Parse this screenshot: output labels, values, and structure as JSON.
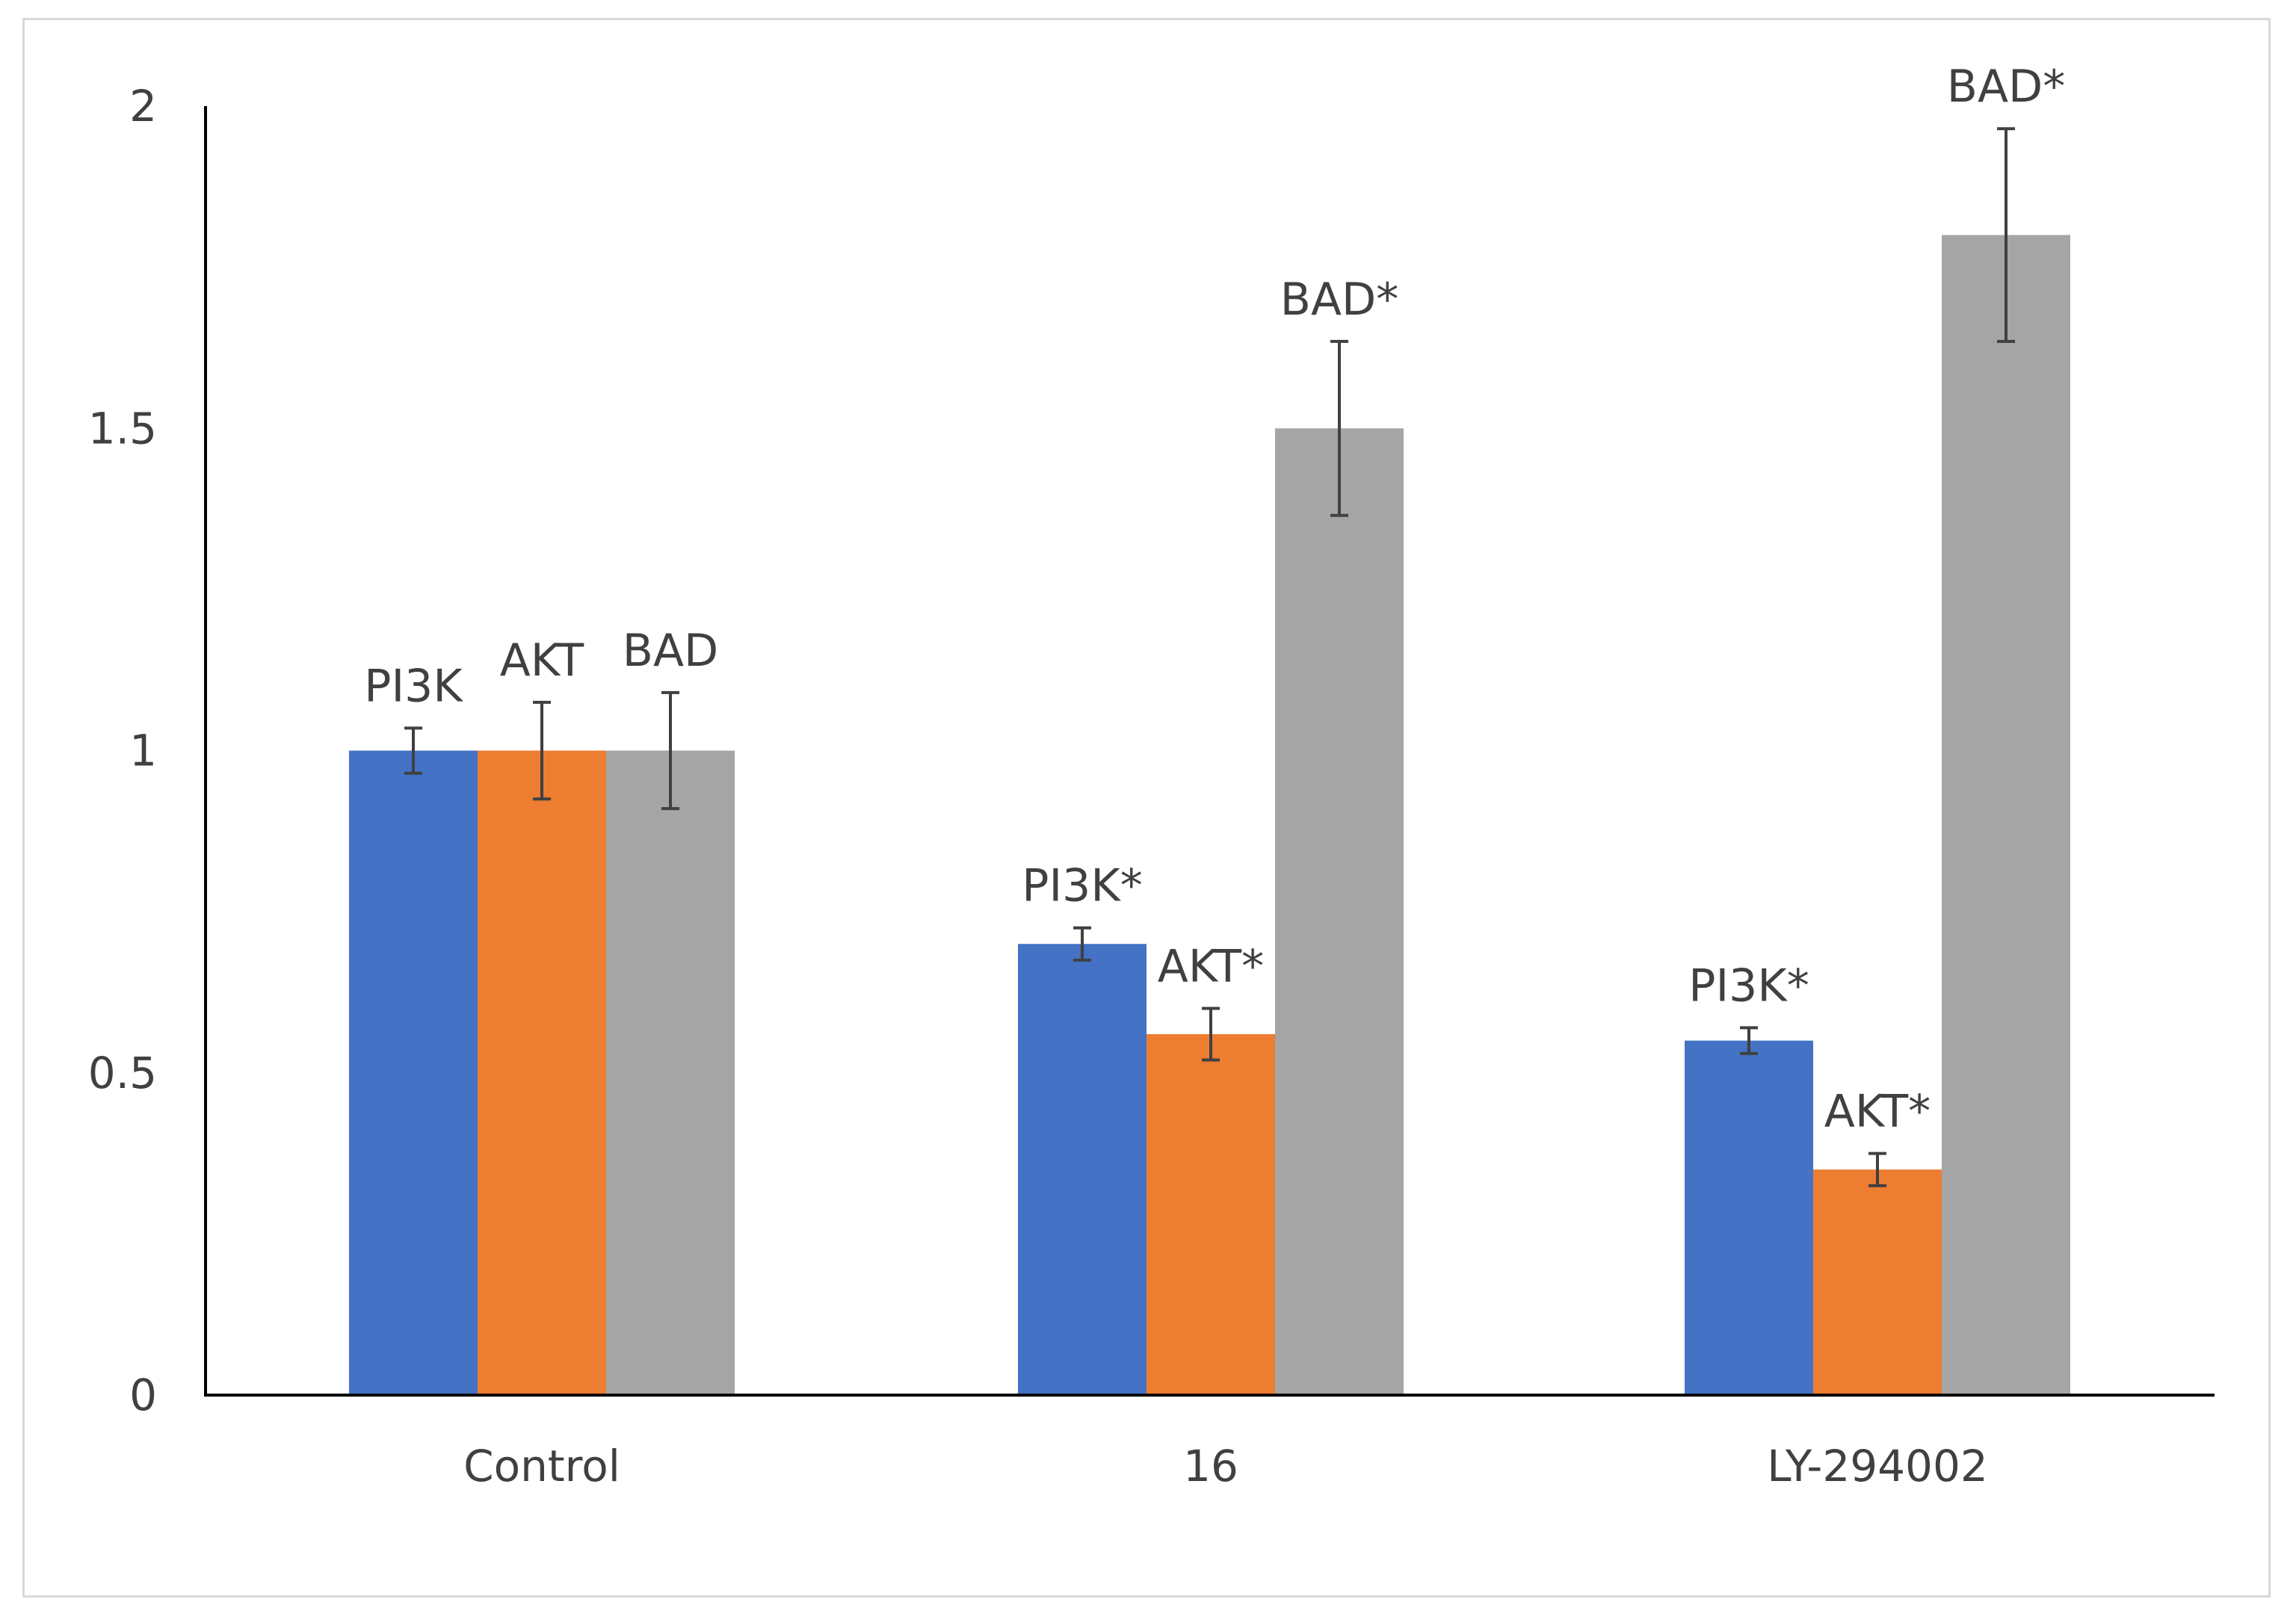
{
  "chart_data": {
    "type": "bar",
    "title": "",
    "xlabel": "",
    "ylabel": "",
    "ylim": [
      0,
      2
    ],
    "yticks": [
      0,
      0.5,
      1,
      1.5,
      2
    ],
    "ytick_labels": [
      "0",
      "0.5",
      "1",
      "1.5",
      "2"
    ],
    "grid": false,
    "legend": "none",
    "categories": [
      "Control",
      "16",
      "LY-294002"
    ],
    "series": [
      {
        "name": "PI3K",
        "color": "#4472C4",
        "values": [
          1.0,
          0.7,
          0.55
        ],
        "errors": [
          0.035,
          0.025,
          0.02
        ],
        "labels": [
          "PI3K",
          "PI3K*",
          "PI3K*"
        ]
      },
      {
        "name": "AKT",
        "color": "#ED7D31",
        "values": [
          1.0,
          0.56,
          0.35
        ],
        "errors": [
          0.075,
          0.04,
          0.025
        ],
        "labels": [
          "AKT",
          "AKT*",
          "AKT*"
        ]
      },
      {
        "name": "BAD",
        "color": "#A5A5A5",
        "values": [
          1.0,
          1.5,
          1.8
        ],
        "errors": [
          0.09,
          0.135,
          0.165
        ],
        "labels": [
          "BAD",
          "BAD*",
          "BAD*"
        ]
      }
    ]
  }
}
